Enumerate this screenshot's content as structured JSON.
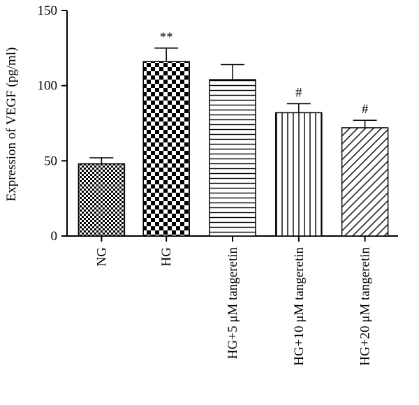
{
  "chart_data": {
    "type": "bar",
    "title": "",
    "xlabel": "",
    "ylabel": "Expression of VEGF (pg/ml)",
    "ylim": [
      0,
      150
    ],
    "yticks": [
      0,
      50,
      100,
      150
    ],
    "grid": false,
    "categories": [
      "NG",
      "HG",
      "HG+5 μM tangeretin",
      "HG+10 μM tangeretin",
      "HG+20 μM tangeretin"
    ],
    "values": [
      48,
      116,
      104,
      82,
      72
    ],
    "errors": [
      4,
      9,
      10,
      6,
      5
    ],
    "significance": [
      "",
      "**",
      "",
      "#",
      "#"
    ],
    "patterns": [
      "fine-checker",
      "coarse-checker",
      "horizontal-lines",
      "vertical-lines",
      "diagonal-lines"
    ]
  }
}
